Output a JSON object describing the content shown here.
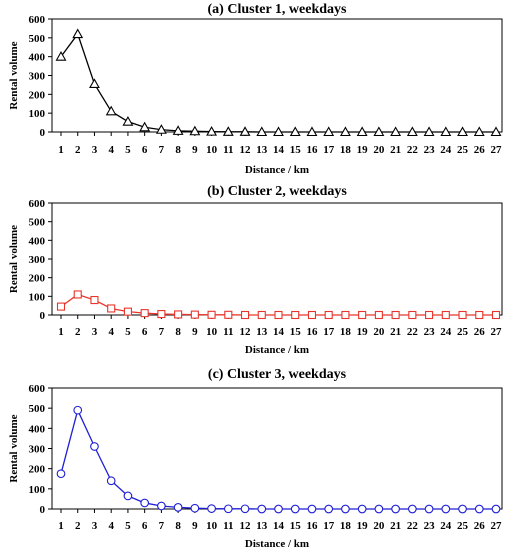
{
  "chart_data": [
    {
      "type": "line",
      "title": "(a) Cluster  1, weekdays",
      "xlabel": "Distance / km",
      "ylabel": "Rental volume",
      "x": [
        1,
        2,
        3,
        4,
        5,
        6,
        7,
        8,
        9,
        10,
        11,
        12,
        13,
        14,
        15,
        16,
        17,
        18,
        19,
        20,
        21,
        22,
        23,
        24,
        25,
        26,
        27
      ],
      "ylim": [
        0,
        600
      ],
      "yticks": [
        0,
        100,
        200,
        300,
        400,
        500,
        600
      ],
      "grid": false,
      "series": [
        {
          "marker": "triangle",
          "color": "#000000",
          "values": [
            400,
            520,
            255,
            110,
            55,
            25,
            12,
            6,
            4,
            2,
            1,
            1,
            0,
            0,
            0,
            0,
            0,
            0,
            0,
            0,
            0,
            0,
            0,
            0,
            0,
            0,
            0
          ]
        }
      ]
    },
    {
      "type": "line",
      "title": "(b) Cluster  2, weekdays",
      "xlabel": "Distance / km",
      "ylabel": "Rental volume",
      "x": [
        1,
        2,
        3,
        4,
        5,
        6,
        7,
        8,
        9,
        10,
        11,
        12,
        13,
        14,
        15,
        16,
        17,
        18,
        19,
        20,
        21,
        22,
        23,
        24,
        25,
        26,
        27
      ],
      "ylim": [
        0,
        600
      ],
      "yticks": [
        0,
        100,
        200,
        300,
        400,
        500,
        600
      ],
      "grid": false,
      "series": [
        {
          "marker": "square",
          "color": "#e8352b",
          "values": [
            45,
            110,
            80,
            35,
            18,
            10,
            5,
            3,
            2,
            1,
            1,
            0,
            0,
            0,
            0,
            0,
            0,
            0,
            0,
            0,
            0,
            0,
            0,
            0,
            0,
            0,
            0
          ]
        }
      ]
    },
    {
      "type": "line",
      "title": "(c) Cluster  3, weekdays",
      "xlabel": "Distance / km",
      "ylabel": "Rental volume",
      "x": [
        1,
        2,
        3,
        4,
        5,
        6,
        7,
        8,
        9,
        10,
        11,
        12,
        13,
        14,
        15,
        16,
        17,
        18,
        19,
        20,
        21,
        22,
        23,
        24,
        25,
        26,
        27
      ],
      "ylim": [
        0,
        600
      ],
      "yticks": [
        0,
        100,
        200,
        300,
        400,
        500,
        600
      ],
      "grid": false,
      "series": [
        {
          "marker": "circle",
          "color": "#1f1fd6",
          "values": [
            175,
            490,
            310,
            140,
            65,
            30,
            15,
            8,
            4,
            2,
            1,
            1,
            0,
            0,
            0,
            0,
            0,
            0,
            0,
            0,
            0,
            0,
            0,
            0,
            0,
            0,
            0
          ]
        }
      ]
    }
  ]
}
